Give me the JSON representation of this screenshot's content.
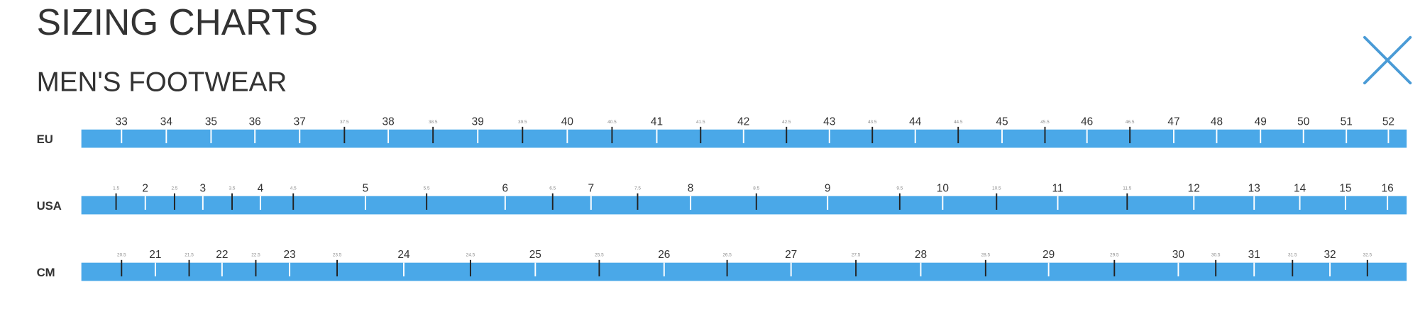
{
  "header": {
    "title": "SIZING CHARTS",
    "subtitle": "MEN'S FOOTWEAR"
  },
  "scales": [
    {
      "label": "EU",
      "ticks": [
        "33",
        "34",
        "35",
        "36",
        "37",
        "37.5",
        "38",
        "38.5",
        "39",
        "39.5",
        "40",
        "40.5",
        "41",
        "41.5",
        "42",
        "42.5",
        "43",
        "43.5",
        "44",
        "44.5",
        "45",
        "45.5",
        "46",
        "46.5",
        "47",
        "48",
        "49",
        "50",
        "51",
        "52"
      ]
    },
    {
      "label": "USA",
      "ticks": [
        "1.5",
        "2",
        "2.5",
        "3",
        "3.5",
        "4",
        "4.5",
        "5",
        "5.5",
        "6",
        "6.5",
        "7",
        "7.5",
        "8",
        "8.5",
        "9",
        "9.5",
        "10",
        "10.5",
        "11",
        "11.5",
        "12",
        "13",
        "14",
        "15",
        "16"
      ]
    },
    {
      "label": "CM",
      "ticks": [
        "20.5",
        "21",
        "21.5",
        "22",
        "22.5",
        "23",
        "23.5",
        "24",
        "24.5",
        "25",
        "25.5",
        "26",
        "26.5",
        "27",
        "27.5",
        "28",
        "28.5",
        "29",
        "29.5",
        "30",
        "30.5",
        "31",
        "31.5",
        "32",
        "32.5"
      ]
    }
  ]
}
